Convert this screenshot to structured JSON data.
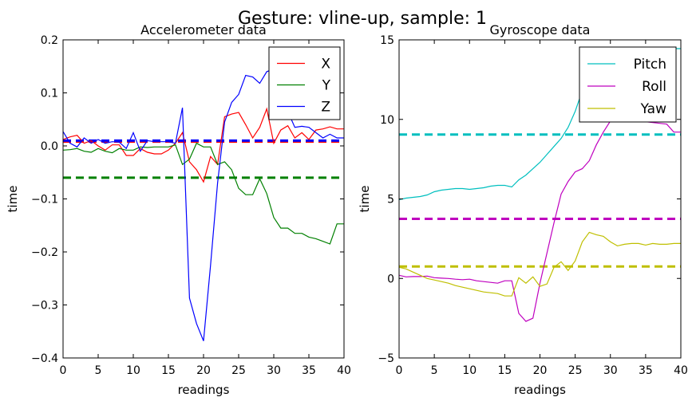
{
  "figure": {
    "title": "Gesture: vline-up, sample: 1"
  },
  "chart_data": [
    {
      "type": "line",
      "title": "Accelerometer data",
      "xlabel": "readings",
      "ylabel": "time",
      "xlim": [
        0,
        40
      ],
      "ylim": [
        -0.4,
        0.2
      ],
      "xticks": [
        0,
        5,
        10,
        15,
        20,
        25,
        30,
        35,
        40
      ],
      "xtick_labels": [
        "0",
        "5",
        "10",
        "15",
        "20",
        "25",
        "30",
        "35",
        "40"
      ],
      "yticks": [
        -0.4,
        -0.3,
        -0.2,
        -0.1,
        0.0,
        0.1,
        0.2
      ],
      "ytick_labels": [
        "−0.4",
        "−0.3",
        "−0.2",
        "−0.1",
        "0.0",
        "0.1",
        "0.2"
      ],
      "grid": false,
      "legend_position": "top-right",
      "x": [
        0,
        1,
        2,
        3,
        4,
        5,
        6,
        7,
        8,
        9,
        10,
        11,
        12,
        13,
        14,
        15,
        16,
        17,
        18,
        19,
        20,
        21,
        22,
        23,
        24,
        25,
        26,
        27,
        28,
        29,
        30,
        31,
        32,
        33,
        34,
        35,
        36,
        37,
        38,
        39,
        40
      ],
      "series": [
        {
          "name": "X",
          "color": "#ff0000",
          "values": [
            0.012,
            0.017,
            0.02,
            0.005,
            0.01,
            0.0,
            -0.008,
            0.002,
            0.002,
            -0.018,
            -0.018,
            -0.005,
            -0.012,
            -0.015,
            -0.015,
            -0.008,
            0.005,
            0.025,
            -0.03,
            -0.045,
            -0.068,
            -0.02,
            -0.035,
            0.055,
            0.06,
            0.063,
            0.04,
            0.015,
            0.035,
            0.07,
            0.005,
            0.03,
            0.038,
            0.015,
            0.025,
            0.012,
            0.03,
            0.032,
            0.036,
            0.032,
            0.032
          ],
          "mean": 0.008
        },
        {
          "name": "Y",
          "color": "#008000",
          "values": [
            -0.008,
            -0.007,
            -0.005,
            -0.01,
            -0.012,
            -0.005,
            -0.01,
            -0.013,
            -0.005,
            -0.008,
            -0.008,
            -0.002,
            -0.003,
            -0.002,
            -0.002,
            -0.002,
            0.002,
            -0.035,
            -0.025,
            0.005,
            -0.002,
            -0.002,
            -0.035,
            -0.03,
            -0.045,
            -0.08,
            -0.092,
            -0.092,
            -0.062,
            -0.09,
            -0.135,
            -0.155,
            -0.155,
            -0.165,
            -0.165,
            -0.172,
            -0.175,
            -0.18,
            -0.185,
            -0.147,
            -0.147
          ],
          "mean": -0.06
        },
        {
          "name": "Z",
          "color": "#0000ff",
          "values": [
            0.027,
            0.005,
            -0.002,
            0.015,
            0.005,
            0.012,
            0.005,
            0.008,
            0.007,
            -0.005,
            0.025,
            -0.01,
            0.01,
            0.008,
            0.008,
            0.008,
            0.005,
            0.072,
            -0.287,
            -0.335,
            -0.368,
            -0.225,
            -0.07,
            0.045,
            0.082,
            0.097,
            0.133,
            0.13,
            0.118,
            0.14,
            0.145,
            0.085,
            0.065,
            0.035,
            0.037,
            0.035,
            0.025,
            0.015,
            0.022,
            0.015,
            0.015
          ],
          "mean": 0.01
        }
      ]
    },
    {
      "type": "line",
      "title": "Gyroscope data",
      "xlabel": "readings",
      "ylabel": "time",
      "xlim": [
        0,
        40
      ],
      "ylim": [
        -5,
        15
      ],
      "xticks": [
        0,
        5,
        10,
        15,
        20,
        25,
        30,
        35,
        40
      ],
      "xtick_labels": [
        "0",
        "5",
        "10",
        "15",
        "20",
        "25",
        "30",
        "35",
        "40"
      ],
      "yticks": [
        -5,
        0,
        5,
        10,
        15
      ],
      "ytick_labels": [
        "−5",
        "0",
        "5",
        "10",
        "15"
      ],
      "grid": false,
      "legend_position": "top-right",
      "x": [
        0,
        1,
        2,
        3,
        4,
        5,
        6,
        7,
        8,
        9,
        10,
        11,
        12,
        13,
        14,
        15,
        16,
        17,
        18,
        19,
        20,
        21,
        22,
        23,
        24,
        25,
        26,
        27,
        28,
        29,
        30,
        31,
        32,
        33,
        34,
        35,
        36,
        37,
        38,
        39,
        40
      ],
      "series": [
        {
          "name": "Pitch",
          "color": "#00bfbf",
          "values": [
            4.95,
            5.05,
            5.1,
            5.15,
            5.25,
            5.45,
            5.55,
            5.6,
            5.65,
            5.65,
            5.6,
            5.65,
            5.7,
            5.8,
            5.85,
            5.85,
            5.75,
            6.2,
            6.5,
            6.9,
            7.3,
            7.8,
            8.3,
            8.8,
            9.5,
            10.5,
            11.8,
            13.0,
            13.8,
            14.2,
            14.4,
            14.45,
            14.45,
            14.45,
            14.45,
            14.45,
            14.45,
            14.45,
            14.45,
            14.45,
            14.45
          ],
          "mean": 9.05
        },
        {
          "name": "Roll",
          "color": "#bf00bf",
          "values": [
            0.2,
            0.1,
            0.12,
            0.12,
            0.15,
            0.05,
            0.02,
            0.0,
            -0.05,
            -0.08,
            -0.05,
            -0.15,
            -0.2,
            -0.25,
            -0.3,
            -0.15,
            -0.15,
            -2.2,
            -2.7,
            -2.5,
            -0.3,
            1.6,
            3.5,
            5.3,
            6.1,
            6.7,
            6.9,
            7.4,
            8.4,
            9.2,
            9.9,
            10.0,
            10.0,
            9.95,
            9.9,
            9.85,
            9.8,
            9.75,
            9.7,
            9.2,
            9.2
          ],
          "mean": 3.75
        },
        {
          "name": "Yaw",
          "color": "#bfbf00",
          "values": [
            0.7,
            0.6,
            0.4,
            0.2,
            0.0,
            -0.1,
            -0.2,
            -0.3,
            -0.45,
            -0.55,
            -0.65,
            -0.75,
            -0.85,
            -0.9,
            -0.95,
            -1.1,
            -1.1,
            0.05,
            -0.3,
            0.1,
            -0.5,
            -0.35,
            0.7,
            1.05,
            0.5,
            1.1,
            2.3,
            2.9,
            2.75,
            2.65,
            2.3,
            2.05,
            2.15,
            2.2,
            2.2,
            2.1,
            2.2,
            2.15,
            2.15,
            2.2,
            2.2
          ],
          "mean": 0.75
        }
      ]
    }
  ]
}
